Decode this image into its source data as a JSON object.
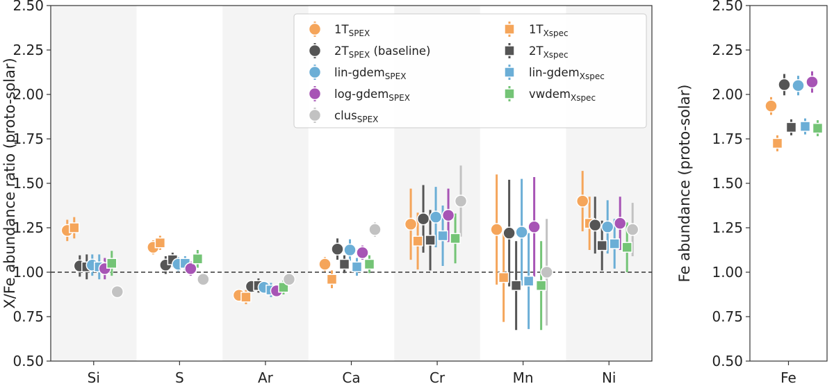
{
  "chart_data": [
    {
      "type": "scatter",
      "title": "",
      "xlabel": "",
      "ylabel": "X/Fe abundance ratio (proto-solar)",
      "ylim": [
        0.5,
        2.5
      ],
      "yticks": [
        "0.50",
        "0.75",
        "1.00",
        "1.25",
        "1.50",
        "1.75",
        "2.00",
        "2.25",
        "2.50"
      ],
      "reference_line": 1.0,
      "categories": [
        "Si",
        "S",
        "Ar",
        "Ca",
        "Cr",
        "Mn",
        "Ni"
      ],
      "shaded_categories": [
        "Si",
        "Ar",
        "Cr",
        "Ni"
      ],
      "series": [
        {
          "name": "1T",
          "sub": "SPEX",
          "color": "#f5a55a",
          "marker": "circle",
          "values": [
            1.235,
            1.14,
            0.87,
            1.045,
            1.27,
            1.24,
            1.4
          ],
          "err": [
            0.06,
            0.04,
            0.03,
            0.04,
            0.2,
            0.31,
            0.17
          ]
        },
        {
          "name": "1T",
          "sub": "Xspec",
          "color": "#f5a55a",
          "marker": "square",
          "values": [
            1.25,
            1.165,
            0.86,
            0.96,
            1.175,
            0.97,
            1.275
          ],
          "err": [
            0.06,
            0.04,
            0.04,
            0.05,
            0.16,
            0.25,
            0.15
          ]
        },
        {
          "name": "2T",
          "sub": "SPEX",
          "suffix": " (baseline)",
          "color": "#555555",
          "marker": "circle",
          "values": [
            1.035,
            1.04,
            0.92,
            1.13,
            1.3,
            1.22,
            1.265
          ],
          "err": [
            0.06,
            0.05,
            0.03,
            0.06,
            0.19,
            0.3,
            0.16
          ]
        },
        {
          "name": "2T",
          "sub": "Xspec",
          "color": "#555555",
          "marker": "square",
          "values": [
            1.03,
            1.07,
            0.925,
            1.045,
            1.18,
            0.925,
            1.15
          ],
          "err": [
            0.07,
            0.04,
            0.04,
            0.05,
            0.17,
            0.25,
            0.14
          ]
        },
        {
          "name": "lin-gdem",
          "sub": "SPEX",
          "color": "#6baed6",
          "marker": "circle",
          "values": [
            1.04,
            1.045,
            0.915,
            1.125,
            1.31,
            1.225,
            1.255
          ],
          "err": [
            0.06,
            0.04,
            0.03,
            0.06,
            0.17,
            0.3,
            0.15
          ]
        },
        {
          "name": "lin-gdem",
          "sub": "Xspec",
          "color": "#6baed6",
          "marker": "square",
          "values": [
            1.03,
            1.05,
            0.9,
            1.03,
            1.205,
            0.95,
            1.16
          ],
          "err": [
            0.07,
            0.04,
            0.04,
            0.05,
            0.17,
            0.27,
            0.14
          ]
        },
        {
          "name": "log-gdem",
          "sub": "SPEX",
          "color": "#a754b5",
          "marker": "circle",
          "values": [
            1.02,
            1.02,
            0.895,
            1.11,
            1.32,
            1.255,
            1.275
          ],
          "err": [
            0.06,
            0.04,
            0.03,
            0.04,
            0.15,
            0.28,
            0.15
          ]
        },
        {
          "name": "vwdem",
          "sub": "Xspec",
          "color": "#74c476",
          "marker": "square",
          "values": [
            1.05,
            1.075,
            0.915,
            1.045,
            1.19,
            0.925,
            1.14
          ],
          "err": [
            0.07,
            0.05,
            0.04,
            0.05,
            0.14,
            0.25,
            0.14
          ]
        },
        {
          "name": "clus",
          "sub": "SPEX",
          "color": "#c2c2c2",
          "marker": "circle",
          "values": [
            0.89,
            0.96,
            0.96,
            1.24,
            1.4,
            1.0,
            1.24
          ],
          "err": [
            0.03,
            0.02,
            0.02,
            0.04,
            0.2,
            0.3,
            0.15
          ]
        }
      ],
      "legend": {
        "placement": "top-right",
        "columns": [
          [
            {
              "name": "1T",
              "sub": "SPEX",
              "suffix": ""
            },
            {
              "name": "2T",
              "sub": "SPEX",
              "suffix": " (baseline)"
            },
            {
              "name": "lin-gdem",
              "sub": "SPEX",
              "suffix": ""
            },
            {
              "name": "log-gdem",
              "sub": "SPEX",
              "suffix": ""
            },
            {
              "name": "clus",
              "sub": "SPEX",
              "suffix": ""
            }
          ],
          [
            {
              "name": "1T",
              "sub": "Xspec",
              "suffix": ""
            },
            {
              "name": "2T",
              "sub": "Xspec",
              "suffix": ""
            },
            {
              "name": "lin-gdem",
              "sub": "Xspec",
              "suffix": ""
            },
            {
              "name": "vwdem",
              "sub": "Xspec",
              "suffix": ""
            }
          ]
        ]
      }
    },
    {
      "type": "scatter",
      "title": "",
      "xlabel": "",
      "ylabel": "Fe abundance (proto-solar)",
      "ylim": [
        0.5,
        2.5
      ],
      "yticks": [
        "0.50",
        "0.75",
        "1.00",
        "1.25",
        "1.50",
        "1.75",
        "2.00",
        "2.25",
        "2.50"
      ],
      "categories": [
        "Fe"
      ],
      "points": [
        {
          "name": "1T",
          "sub": "SPEX",
          "color": "#f5a55a",
          "marker": "circle",
          "value": 1.935,
          "err": 0.05
        },
        {
          "name": "1T",
          "sub": "Xspec",
          "color": "#f5a55a",
          "marker": "square",
          "value": 1.725,
          "err": 0.045
        },
        {
          "name": "2T",
          "sub": "SPEX",
          "color": "#555555",
          "marker": "circle",
          "value": 2.055,
          "err": 0.06
        },
        {
          "name": "2T",
          "sub": "Xspec",
          "color": "#555555",
          "marker": "square",
          "value": 1.815,
          "err": 0.045
        },
        {
          "name": "lin-gdem",
          "sub": "SPEX",
          "color": "#6baed6",
          "marker": "circle",
          "value": 2.05,
          "err": 0.055
        },
        {
          "name": "lin-gdem",
          "sub": "Xspec",
          "color": "#6baed6",
          "marker": "square",
          "value": 1.82,
          "err": 0.045
        },
        {
          "name": "log-gdem",
          "sub": "SPEX",
          "color": "#a754b5",
          "marker": "circle",
          "value": 2.07,
          "err": 0.06
        },
        {
          "name": "vwdem",
          "sub": "Xspec",
          "color": "#74c476",
          "marker": "square",
          "value": 1.81,
          "err": 0.045
        }
      ]
    }
  ]
}
